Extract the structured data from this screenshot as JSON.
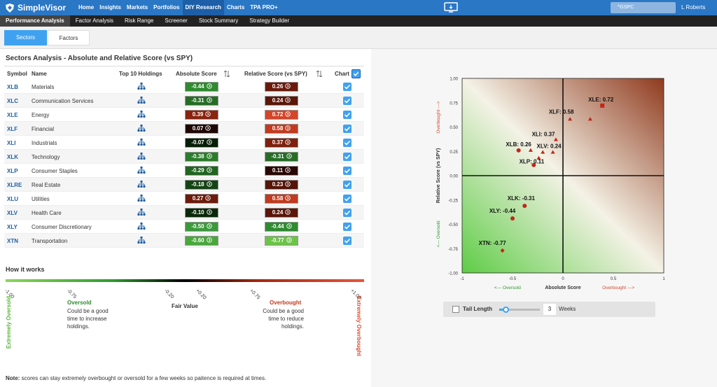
{
  "app": {
    "name": "SimpleVisor",
    "user": "L Roberts",
    "search_value": "^GSPC"
  },
  "nav": {
    "items": [
      "Home",
      "Insights",
      "Markets",
      "Portfolios",
      "DIY Research",
      "Charts",
      "TPA PRO+"
    ],
    "active": "DIY Research"
  },
  "subnav": {
    "items": [
      "Performance Analysis",
      "Factor Analysis",
      "Risk Range",
      "Screener",
      "Stock Summary",
      "Strategy Builder"
    ],
    "active": "Performance Analysis"
  },
  "tabs": {
    "sectors": "Sectors",
    "factors": "Factors"
  },
  "section": {
    "title": "Sectors Analysis - Absolute and Relative Score (vs SPY)"
  },
  "table": {
    "headers": {
      "symbol": "Symbol",
      "name": "Name",
      "holdings": "Top 10 Holdings",
      "abs": "Absolute Score",
      "rel": "Relative Score (vs SPY)",
      "chart": "Chart"
    },
    "rows": [
      {
        "symbol": "XLB",
        "name": "Materials",
        "abs": "-0.44",
        "rel": "0.26",
        "abs_color": "#2e8b2e",
        "rel_color": "#6b1a0a"
      },
      {
        "symbol": "XLC",
        "name": "Communication Services",
        "abs": "-0.31",
        "rel": "0.24",
        "abs_color": "#256d25",
        "rel_color": "#5a1608"
      },
      {
        "symbol": "XLE",
        "name": "Energy",
        "abs": "0.39",
        "rel": "0.72",
        "abs_color": "#8a230f",
        "rel_color": "#d5452a"
      },
      {
        "symbol": "XLF",
        "name": "Financial",
        "abs": "0.07",
        "rel": "0.58",
        "abs_color": "#1e0602",
        "rel_color": "#c23a1f"
      },
      {
        "symbol": "XLI",
        "name": "Industrials",
        "abs": "-0.07",
        "rel": "0.37",
        "abs_color": "#061e06",
        "rel_color": "#7e200d"
      },
      {
        "symbol": "XLK",
        "name": "Technology",
        "abs": "-0.38",
        "rel": "-0.31",
        "abs_color": "#2a7d2a",
        "rel_color": "#256d25"
      },
      {
        "symbol": "XLP",
        "name": "Consumer Staples",
        "abs": "-0.29",
        "rel": "0.11",
        "abs_color": "#206520",
        "rel_color": "#2a0803"
      },
      {
        "symbol": "XLRE",
        "name": "Real Estate",
        "abs": "-0.18",
        "rel": "0.23",
        "abs_color": "#144414",
        "rel_color": "#551507"
      },
      {
        "symbol": "XLU",
        "name": "Utilities",
        "abs": "0.27",
        "rel": "0.58",
        "abs_color": "#6e1b0b",
        "rel_color": "#c23a1f"
      },
      {
        "symbol": "XLV",
        "name": "Health Care",
        "abs": "-0.10",
        "rel": "0.24",
        "abs_color": "#0a290a",
        "rel_color": "#5a1608"
      },
      {
        "symbol": "XLY",
        "name": "Consumer Discretionary",
        "abs": "-0.50",
        "rel": "-0.44",
        "abs_color": "#3a9a3a",
        "rel_color": "#2e8b2e"
      },
      {
        "symbol": "XTN",
        "name": "Transportation",
        "abs": "-0.60",
        "rel": "-0.77",
        "abs_color": "#48a83a",
        "rel_color": "#6cc447"
      }
    ]
  },
  "how": {
    "title": "How it works",
    "ticks": [
      "-1.00",
      "-0.75",
      "-0.20",
      "+0.20",
      "+0.75",
      "+1.00"
    ],
    "extreme_oversold": "Extremely Oversold",
    "extreme_overbought": "Extremely Overbought",
    "oversold_title": "Oversold",
    "oversold_desc": [
      "Could be a good",
      "time to increase",
      "holdings."
    ],
    "fair_value": "Fair Value",
    "overbought_title": "Overbought",
    "overbought_desc": [
      "Could be a good",
      "time to reduce",
      "holdings."
    ],
    "note_bold": "Note:",
    "note_text": " scores can stay extremely overbought or oversold for a few weeks so paitence is required at times."
  },
  "chart_data": {
    "type": "scatter",
    "xlabel": "Absolute Score",
    "ylabel": "Relative Score (vs SPY)",
    "x_left_label": "<--- Oversold",
    "x_right_label": "Overbought --->",
    "y_top_label": "Overbought --->",
    "y_bottom_label": "<--- Oversold",
    "xlim": [
      -1,
      1
    ],
    "ylim": [
      -1,
      1
    ],
    "xticks": [
      "-1",
      "-0.5",
      "0",
      "0.5",
      "1"
    ],
    "yticks": [
      "1.00",
      "0.75",
      "0.50",
      "0.25",
      "0.00",
      "-0.25",
      "-0.50",
      "-0.75",
      "-1.00"
    ],
    "points": [
      {
        "label": "XLE: 0.72",
        "x": 0.39,
        "y": 0.72,
        "marker": "square",
        "tail": [
          {
            "x": 0.27,
            "y": 0.58
          },
          {
            "x": 0.07,
            "y": 0.58
          }
        ]
      },
      {
        "label": "XLF: 0.58",
        "x": 0.07,
        "y": 0.58,
        "marker": "none",
        "tail": []
      },
      {
        "label": "XLI: 0.37",
        "x": -0.07,
        "y": 0.37,
        "marker": "triangle",
        "tail": []
      },
      {
        "label": "XLV: 0.24",
        "x": -0.1,
        "y": 0.24,
        "marker": "triangle",
        "tail": [
          {
            "x": -0.2,
            "y": 0.24
          }
        ]
      },
      {
        "label": "XLB: 0.26",
        "x": -0.44,
        "y": 0.26,
        "marker": "circle",
        "tail": [
          {
            "x": -0.32,
            "y": 0.26
          }
        ]
      },
      {
        "label": "XLP: 0.11",
        "x": -0.29,
        "y": 0.11,
        "marker": "circle",
        "tail": [
          {
            "x": -0.24,
            "y": 0.18
          }
        ]
      },
      {
        "label": "XLK: -0.31",
        "x": -0.38,
        "y": -0.31,
        "marker": "circle",
        "tail": []
      },
      {
        "label": "XLY: -0.44",
        "x": -0.5,
        "y": -0.44,
        "marker": "circle",
        "tail": []
      },
      {
        "label": "XTN: -0.77",
        "x": -0.6,
        "y": -0.77,
        "marker": "diamond",
        "tail": []
      }
    ]
  },
  "controls": {
    "tail_label": "Tail Length",
    "weeks_value": "3",
    "weeks_label": "Weeks",
    "slider_fraction": 0.15
  }
}
